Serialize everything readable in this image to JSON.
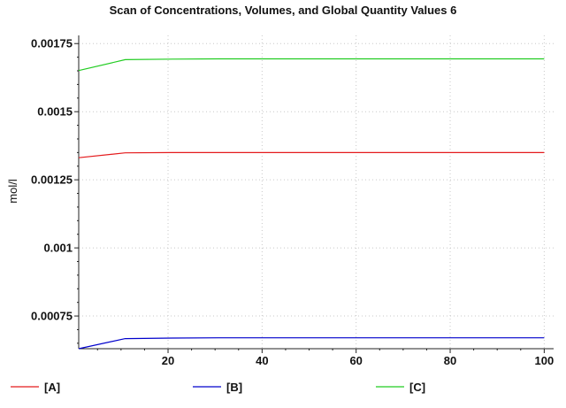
{
  "chart_data": {
    "type": "line",
    "title": "Scan of Concentrations, Volumes, and Global Quantity Values 6",
    "xlabel": "",
    "ylabel": "mol/l",
    "xlim": [
      1,
      102
    ],
    "ylim": [
      0.00063,
      0.00178
    ],
    "x_ticks": [
      20,
      40,
      60,
      80,
      100
    ],
    "x_tick_labels": [
      "20",
      "40",
      "60",
      "80",
      "100"
    ],
    "y_ticks": [
      0.00075,
      0.001,
      0.00125,
      0.0015,
      0.00175
    ],
    "y_tick_labels": [
      "0.00075",
      "0.001",
      "0.00125",
      "0.0015",
      "0.00175"
    ],
    "grid": true,
    "legend_position": "bottom",
    "x": [
      1,
      10.9,
      20.8,
      30.7,
      40.6,
      50.5,
      60.4,
      70.3,
      80.2,
      90.1,
      100
    ],
    "series": [
      {
        "name": "[A]",
        "color": "#e41a1c",
        "values": [
          0.001331,
          0.001349,
          0.00135,
          0.00135,
          0.00135,
          0.00135,
          0.00135,
          0.00135,
          0.00135,
          0.00135,
          0.00135
        ]
      },
      {
        "name": "[B]",
        "color": "#0000cc",
        "values": [
          0.00063,
          0.000667,
          0.000669,
          0.00067,
          0.00067,
          0.00067,
          0.00067,
          0.00067,
          0.00067,
          0.00067,
          0.00067
        ]
      },
      {
        "name": "[C]",
        "color": "#22cc22",
        "values": [
          0.001651,
          0.001691,
          0.001693,
          0.001694,
          0.001694,
          0.001694,
          0.001694,
          0.001694,
          0.001694,
          0.001694,
          0.001694
        ]
      }
    ]
  }
}
